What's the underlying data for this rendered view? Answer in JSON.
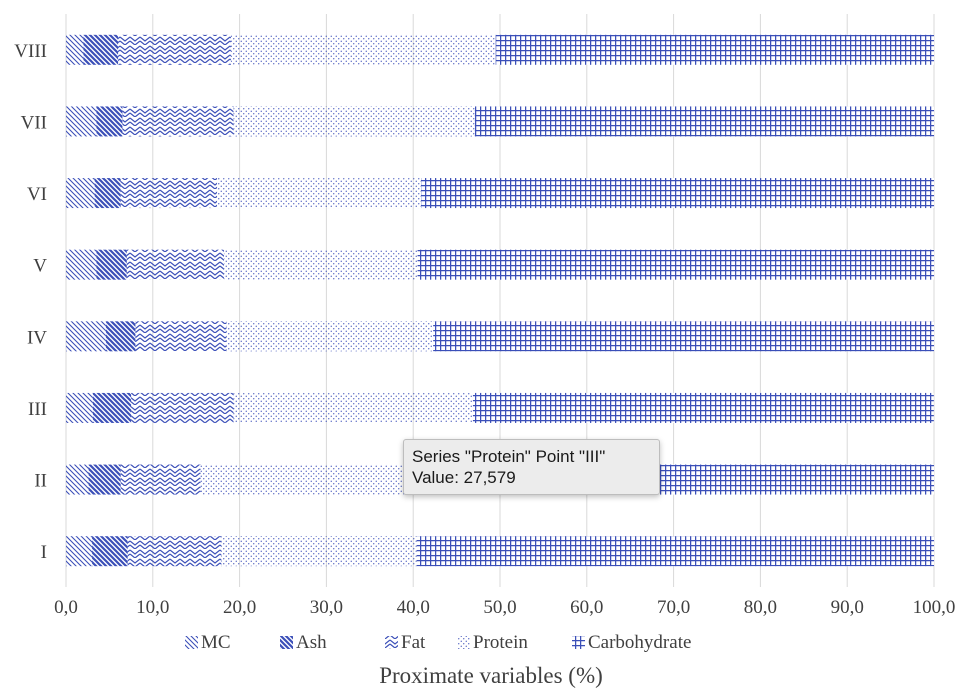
{
  "colors": {
    "series": "#3b4fb8",
    "grid": "#d9d9d9",
    "text": "#404040"
  },
  "chart_data": {
    "type": "bar",
    "orientation": "horizontal",
    "stacked": true,
    "categories": [
      "I",
      "II",
      "III",
      "IV",
      "V",
      "VI",
      "VII",
      "VIII"
    ],
    "series": [
      {
        "name": "MC",
        "pattern": "light-diagonal",
        "values": [
          3.0,
          2.6,
          3.1,
          4.6,
          3.5,
          3.3,
          3.5,
          2.0
        ]
      },
      {
        "name": "Ash",
        "pattern": "dark-diagonal",
        "values": [
          4.1,
          3.7,
          4.4,
          3.4,
          3.5,
          3.0,
          3.0,
          4.0
        ]
      },
      {
        "name": "Fat",
        "pattern": "zigzag",
        "values": [
          10.8,
          9.2,
          11.8,
          10.5,
          11.2,
          11.1,
          12.8,
          13.0
        ]
      },
      {
        "name": "Protein",
        "pattern": "dots",
        "values": [
          22.5,
          23.5,
          27.579,
          23.8,
          22.3,
          23.5,
          27.8,
          30.5
        ]
      },
      {
        "name": "Carbohydrate",
        "pattern": "grid",
        "values": [
          59.6,
          61.0,
          53.1,
          57.7,
          59.5,
          59.1,
          52.9,
          50.5
        ]
      }
    ],
    "xlabel": "Proximate variables (%)",
    "ylabel": "",
    "xlim": [
      0,
      100
    ],
    "xticks": [
      "0,0",
      "10,0",
      "20,0",
      "30,0",
      "40,0",
      "50,0",
      "60,0",
      "70,0",
      "80,0",
      "90,0",
      "100,0"
    ],
    "grid": true,
    "legend_position": "bottom"
  },
  "tooltip": {
    "line1": "Series \"Protein\" Point \"III\"",
    "line2": "Value: 27,579"
  }
}
